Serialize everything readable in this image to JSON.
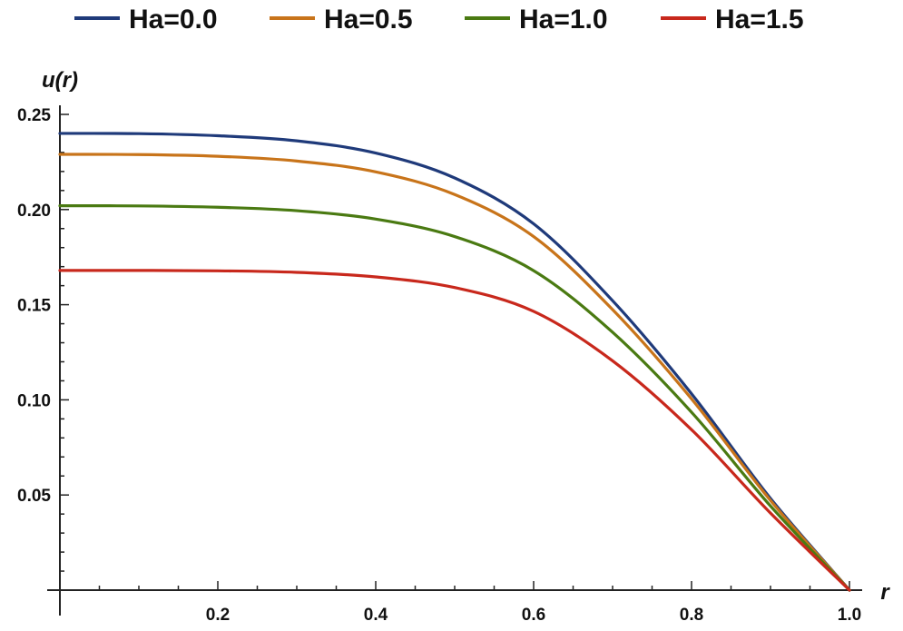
{
  "chart_data": {
    "type": "line",
    "title": "",
    "xlabel": "r",
    "ylabel": "u(r)",
    "xlim": [
      0.0,
      1.0
    ],
    "ylim": [
      0.0,
      0.25
    ],
    "grid": false,
    "legend_position": "top",
    "x_ticks": [
      "0.2",
      "0.4",
      "0.6",
      "0.8",
      "1.0"
    ],
    "y_ticks": [
      "0.05",
      "0.10",
      "0.15",
      "0.20",
      "0.25"
    ],
    "x": [
      0.0,
      0.1,
      0.2,
      0.3,
      0.4,
      0.5,
      0.6,
      0.7,
      0.8,
      0.9,
      1.0
    ],
    "series": [
      {
        "name": "Ha=0.0",
        "color": "#1f3a7a",
        "values": [
          0.24,
          0.2399,
          0.2388,
          0.2361,
          0.2297,
          0.2166,
          0.1925,
          0.1521,
          0.1032,
          0.0482,
          0.0
        ]
      },
      {
        "name": "Ha=0.5",
        "color": "#c8741a",
        "values": [
          0.229,
          0.2289,
          0.228,
          0.2255,
          0.2198,
          0.2079,
          0.1858,
          0.1474,
          0.1005,
          0.0471,
          0.0
        ]
      },
      {
        "name": "Ha=1.0",
        "color": "#4a7a12",
        "values": [
          0.202,
          0.2019,
          0.2012,
          0.1994,
          0.195,
          0.1858,
          0.1679,
          0.1355,
          0.0935,
          0.0442,
          0.0
        ]
      },
      {
        "name": "Ha=1.5",
        "color": "#c8281c",
        "values": [
          0.168,
          0.168,
          0.1678,
          0.167,
          0.1646,
          0.159,
          0.1465,
          0.1205,
          0.0843,
          0.0405,
          0.0
        ]
      }
    ]
  }
}
